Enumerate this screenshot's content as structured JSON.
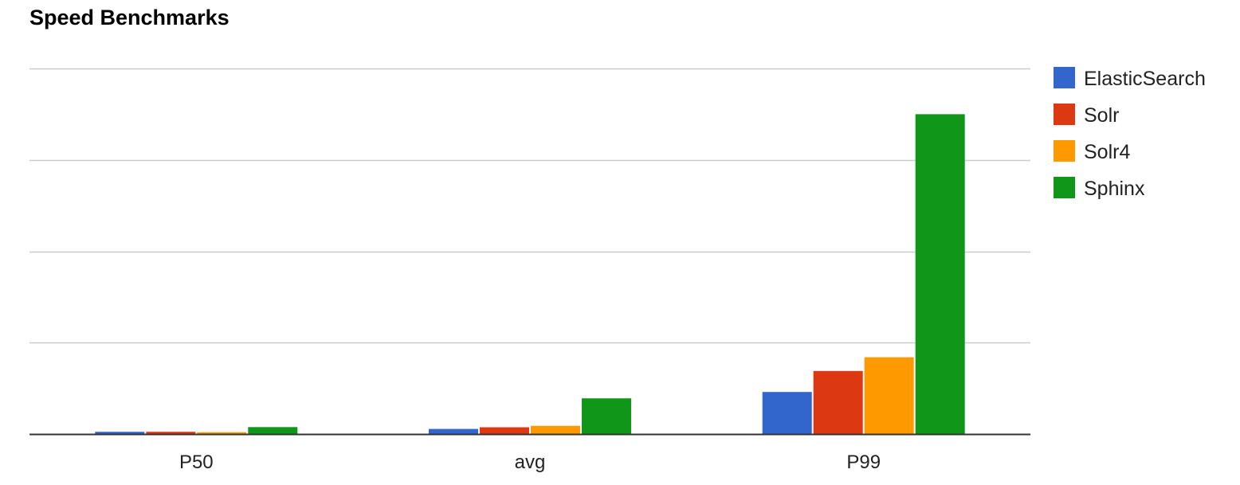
{
  "chart_data": {
    "type": "bar",
    "title": "Speed Benchmarks",
    "xlabel": "",
    "ylabel": "",
    "categories": [
      "P50",
      "avg",
      "P99"
    ],
    "series": [
      {
        "name": "ElasticSearch",
        "color": "#3366cc",
        "values": [
          0.12,
          0.28,
          2.3
        ]
      },
      {
        "name": "Solr",
        "color": "#dc3912",
        "values": [
          0.12,
          0.37,
          3.45
        ]
      },
      {
        "name": "Solr4",
        "color": "#ff9900",
        "values": [
          0.1,
          0.45,
          4.2
        ]
      },
      {
        "name": "Sphinx",
        "color": "#109618",
        "values": [
          0.38,
          1.95,
          17.5
        ]
      }
    ],
    "ylim": [
      0,
      20
    ],
    "gridlines": [
      5,
      10,
      15,
      20
    ],
    "grid": true,
    "legend_position": "right"
  }
}
